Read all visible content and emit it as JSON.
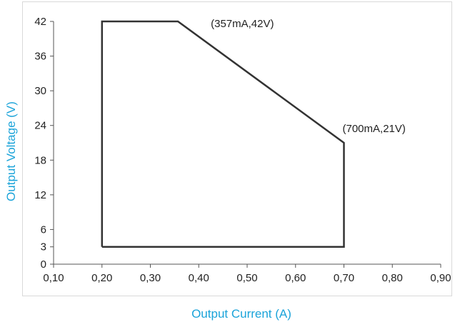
{
  "chart_data": {
    "type": "area",
    "title": "",
    "xlabel": "Output Current (A)",
    "ylabel": "Output Voltage (V)",
    "xlim": [
      0.1,
      0.9
    ],
    "ylim": [
      0,
      42
    ],
    "x_ticks": [
      0.1,
      0.2,
      0.3,
      0.4,
      0.5,
      0.6,
      0.7,
      0.8,
      0.9
    ],
    "x_tick_labels": [
      "0,10",
      "0,20",
      "0,30",
      "0,40",
      "0,50",
      "0,60",
      "0,70",
      "0,80",
      "0,90"
    ],
    "y_ticks": [
      0,
      3,
      6,
      12,
      18,
      24,
      30,
      36,
      42
    ],
    "y_tick_labels": [
      "0",
      "3",
      "6",
      "12",
      "18",
      "24",
      "30",
      "36",
      "42"
    ],
    "grid": false,
    "series": [
      {
        "points": [
          {
            "x": 0.2,
            "y": 3
          },
          {
            "x": 0.2,
            "y": 42
          },
          {
            "x": 0.357,
            "y": 42
          },
          {
            "x": 0.7,
            "y": 21
          },
          {
            "x": 0.7,
            "y": 3
          },
          {
            "x": 0.2,
            "y": 3
          }
        ],
        "color": "#333333"
      }
    ],
    "annotations": [
      {
        "text": "(357mA,42V)",
        "x": 0.357,
        "y": 42
      },
      {
        "text": "(700mA,21V)",
        "x": 0.7,
        "y": 21
      }
    ],
    "axis_title_color": "#1aa3d9"
  }
}
